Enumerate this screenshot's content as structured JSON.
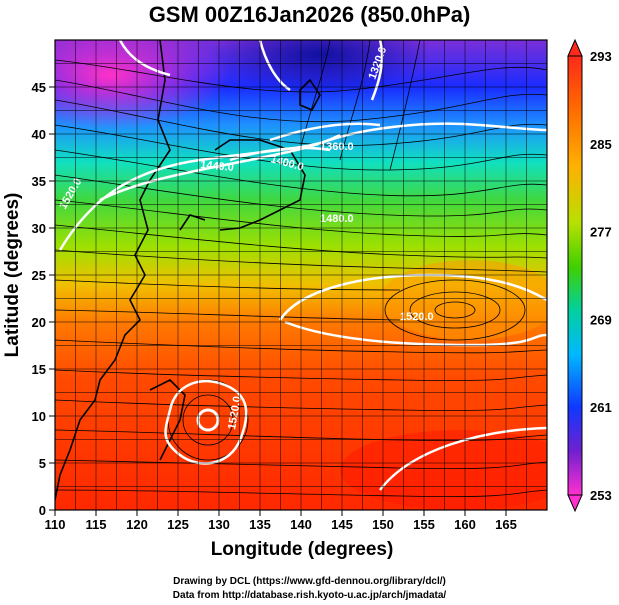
{
  "title": "GSM 00Z16Jan2026 (850.0hPa)",
  "x_axis": {
    "label": "Longitude (degrees)",
    "ticks": [
      "110",
      "115",
      "120",
      "125",
      "130",
      "135",
      "140",
      "145",
      "150",
      "155",
      "160",
      "165"
    ],
    "range": [
      110,
      170
    ]
  },
  "y_axis": {
    "label": "Latitude  (degrees)",
    "ticks": [
      "0",
      "5",
      "10",
      "15",
      "20",
      "25",
      "30",
      "35",
      "40",
      "45"
    ],
    "range": [
      0,
      50
    ]
  },
  "colorbar": {
    "labels": [
      "293",
      "285",
      "277",
      "269",
      "261",
      "253"
    ],
    "min": 253,
    "max": 293
  },
  "contour_labels": [
    "1320.0",
    "1360.0",
    "1400.0",
    "1440.0",
    "1480.0",
    "1520.0",
    "1520.0",
    "1520.0"
  ],
  "credits": {
    "line1": "Drawing by DCL (https://www.gfd-dennou.org/library/dcl/)",
    "line2": "Data from http://database.rish.kyoto-u.ac.jp/arch/jmadata/"
  },
  "colors": {
    "warm": "#ff3a00",
    "orange": "#ff8c00",
    "green": "#55d000",
    "cyan": "#00d8d0",
    "blue": "#1040ff",
    "magenta": "#ff30c0",
    "contour": "#ffffff"
  }
}
